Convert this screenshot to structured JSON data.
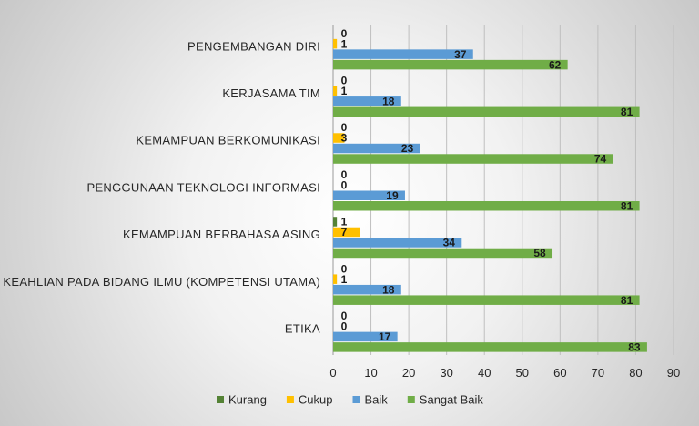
{
  "chart_data": {
    "type": "bar",
    "orientation": "horizontal",
    "categories": [
      "PENGEMBANGAN DIRI",
      "KERJASAMA TIM",
      "KEMAMPUAN BERKOMUNIKASI",
      "PENGGUNAAN TEKNOLOGI INFORMASI",
      "KEMAMPUAN BERBAHASA ASING",
      "KEAHLIAN PADA BIDANG ILMU (KOMPETENSI UTAMA)",
      "ETIKA"
    ],
    "series": [
      {
        "name": "Kurang",
        "color": "#548235",
        "values": [
          0,
          0,
          0,
          0,
          1,
          0,
          0
        ]
      },
      {
        "name": "Cukup",
        "color": "#FFC000",
        "values": [
          1,
          1,
          3,
          0,
          7,
          1,
          0
        ]
      },
      {
        "name": "Baik",
        "color": "#5B9BD5",
        "values": [
          37,
          18,
          23,
          19,
          34,
          18,
          17
        ]
      },
      {
        "name": "Sangat Baik",
        "color": "#70AD47",
        "values": [
          62,
          81,
          74,
          81,
          58,
          81,
          83
        ]
      }
    ],
    "xlim": [
      0,
      90
    ],
    "xticks": [
      0,
      10,
      20,
      30,
      40,
      50,
      60,
      70,
      80,
      90
    ],
    "grid": true,
    "legend_position": "bottom"
  }
}
